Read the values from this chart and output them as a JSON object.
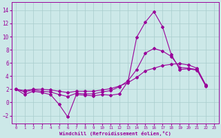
{
  "xlabel": "Windchill (Refroidissement éolien,°C)",
  "xlim": [
    -0.5,
    23.5
  ],
  "ylim": [
    -3.2,
    15.2
  ],
  "yticks": [
    -2,
    0,
    2,
    4,
    6,
    8,
    10,
    12,
    14
  ],
  "xticks": [
    0,
    1,
    2,
    3,
    4,
    5,
    6,
    7,
    8,
    9,
    10,
    11,
    12,
    13,
    14,
    15,
    16,
    17,
    18,
    19,
    20,
    21,
    22,
    23
  ],
  "background_color": "#cce8e8",
  "grid_color": "#a8cccc",
  "line_color": "#990099",
  "series": {
    "line1_x": [
      0,
      1,
      2,
      3,
      4,
      5,
      6,
      7,
      8,
      9,
      10,
      11,
      12,
      13,
      14,
      15,
      16,
      17,
      18,
      19,
      20,
      21,
      22
    ],
    "line1_y": [
      2.0,
      1.2,
      1.7,
      1.5,
      1.2,
      -0.3,
      -2.2,
      1.2,
      1.1,
      1.0,
      1.2,
      1.1,
      1.3,
      3.2,
      9.9,
      12.2,
      13.8,
      11.5,
      7.3,
      5.0,
      5.1,
      4.9,
      2.5
    ],
    "line2_x": [
      0,
      1,
      2,
      3,
      4,
      5,
      6,
      7,
      8,
      9,
      10,
      11,
      12,
      13,
      14,
      15,
      16,
      17,
      18,
      19,
      20,
      21,
      22
    ],
    "line2_y": [
      2.0,
      1.6,
      1.9,
      1.7,
      1.6,
      1.2,
      0.9,
      1.4,
      1.3,
      1.3,
      1.6,
      1.8,
      2.4,
      3.3,
      5.0,
      7.5,
      8.2,
      7.8,
      7.0,
      5.3,
      5.2,
      5.0,
      2.6
    ],
    "line3_x": [
      0,
      1,
      2,
      3,
      4,
      5,
      6,
      7,
      8,
      9,
      10,
      11,
      12,
      13,
      14,
      15,
      16,
      17,
      18,
      19,
      20,
      21,
      22
    ],
    "line3_y": [
      2.0,
      1.8,
      2.0,
      2.0,
      1.9,
      1.7,
      1.5,
      1.7,
      1.7,
      1.7,
      1.9,
      2.1,
      2.5,
      3.0,
      3.8,
      4.8,
      5.2,
      5.6,
      5.8,
      5.9,
      5.7,
      5.2,
      2.7
    ]
  }
}
